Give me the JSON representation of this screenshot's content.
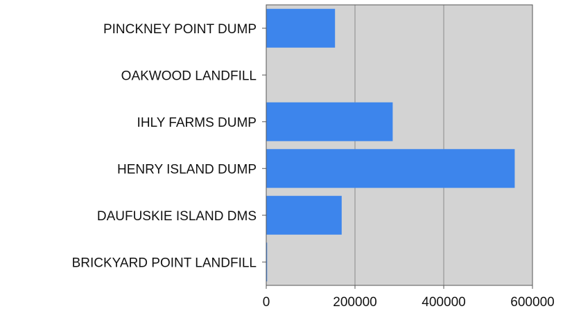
{
  "chart_data": {
    "type": "bar",
    "orientation": "horizontal",
    "title": "",
    "xlabel": "",
    "ylabel": "",
    "categories": [
      "PINCKNEY POINT DUMP",
      "OAKWOOD LANDFILL",
      "IHLY FARMS DUMP",
      "HENRY ISLAND DUMP",
      "DAUFUSKIE ISLAND DMS",
      "BRICKYARD POINT LANDFILL"
    ],
    "values": [
      155000,
      0,
      285000,
      560000,
      170000,
      2000
    ],
    "xlim": [
      0,
      600000
    ],
    "xticks": [
      "0",
      "200000",
      "400000",
      "600000"
    ],
    "grid": "vertical",
    "bar_color": "#3d85ec",
    "plot_background": "#d3d3d3",
    "legend": "none"
  }
}
